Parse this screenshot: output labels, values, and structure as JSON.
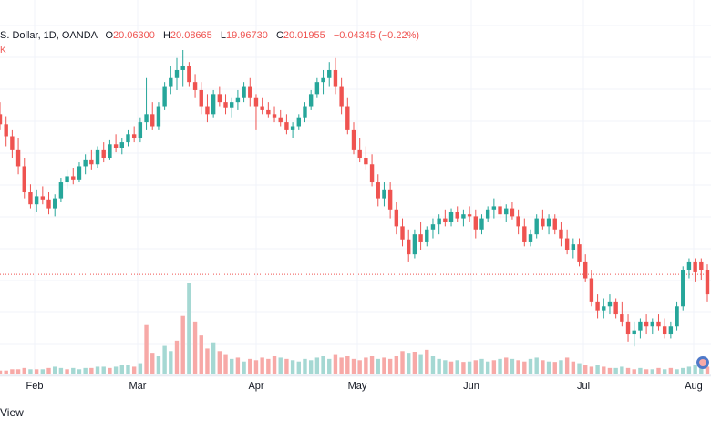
{
  "header": {
    "symbol_text": "S. Dollar, 1D, OANDA",
    "open_label": "O",
    "open": "20.06300",
    "high_label": "H",
    "high": "20.08665",
    "low_label": "L",
    "low": "19.96730",
    "close_label": "C",
    "close": "20.01955",
    "change": "−0.04345 (−0.22%)"
  },
  "footer": {
    "view_label": "View"
  },
  "side_mark": "K",
  "colors": {
    "up": "#26a69a",
    "down": "#ef5350",
    "up_volume": "#a5d8d3",
    "down_volume": "#f7a9a7",
    "grid": "#f0f3fa"
  },
  "chart_data": {
    "type": "candlestick",
    "x_ticks": [
      "Feb",
      "Mar",
      "Apr",
      "May",
      "Jun",
      "Jul",
      "Aug"
    ],
    "current_price_line": 20.0,
    "grid": true,
    "ylim": [
      19.55,
      21.12
    ],
    "candles": [
      {
        "o": 20.8,
        "h": 20.86,
        "l": 20.72,
        "c": 20.75
      },
      {
        "o": 20.75,
        "h": 20.79,
        "l": 20.64,
        "c": 20.69
      },
      {
        "o": 20.69,
        "h": 20.72,
        "l": 20.58,
        "c": 20.62
      },
      {
        "o": 20.62,
        "h": 20.68,
        "l": 20.5,
        "c": 20.54
      },
      {
        "o": 20.54,
        "h": 20.58,
        "l": 20.38,
        "c": 20.41
      },
      {
        "o": 20.41,
        "h": 20.45,
        "l": 20.33,
        "c": 20.35
      },
      {
        "o": 20.35,
        "h": 20.42,
        "l": 20.31,
        "c": 20.39
      },
      {
        "o": 20.39,
        "h": 20.44,
        "l": 20.35,
        "c": 20.37
      },
      {
        "o": 20.37,
        "h": 20.41,
        "l": 20.3,
        "c": 20.33
      },
      {
        "o": 20.33,
        "h": 20.4,
        "l": 20.29,
        "c": 20.38
      },
      {
        "o": 20.38,
        "h": 20.48,
        "l": 20.36,
        "c": 20.46
      },
      {
        "o": 20.46,
        "h": 20.52,
        "l": 20.43,
        "c": 20.49
      },
      {
        "o": 20.49,
        "h": 20.53,
        "l": 20.45,
        "c": 20.47
      },
      {
        "o": 20.47,
        "h": 20.56,
        "l": 20.46,
        "c": 20.54
      },
      {
        "o": 20.54,
        "h": 20.6,
        "l": 20.5,
        "c": 20.57
      },
      {
        "o": 20.57,
        "h": 20.62,
        "l": 20.52,
        "c": 20.55
      },
      {
        "o": 20.55,
        "h": 20.64,
        "l": 20.53,
        "c": 20.62
      },
      {
        "o": 20.62,
        "h": 20.66,
        "l": 20.56,
        "c": 20.58
      },
      {
        "o": 20.58,
        "h": 20.67,
        "l": 20.57,
        "c": 20.65
      },
      {
        "o": 20.65,
        "h": 20.7,
        "l": 20.61,
        "c": 20.63
      },
      {
        "o": 20.63,
        "h": 20.68,
        "l": 20.6,
        "c": 20.66
      },
      {
        "o": 20.66,
        "h": 20.72,
        "l": 20.64,
        "c": 20.7
      },
      {
        "o": 20.7,
        "h": 20.74,
        "l": 20.66,
        "c": 20.68
      },
      {
        "o": 20.68,
        "h": 20.78,
        "l": 20.66,
        "c": 20.76
      },
      {
        "o": 20.76,
        "h": 20.98,
        "l": 20.72,
        "c": 20.8
      },
      {
        "o": 20.8,
        "h": 20.86,
        "l": 20.72,
        "c": 20.74
      },
      {
        "o": 20.74,
        "h": 20.86,
        "l": 20.72,
        "c": 20.84
      },
      {
        "o": 20.84,
        "h": 20.96,
        "l": 20.82,
        "c": 20.94
      },
      {
        "o": 20.94,
        "h": 21.04,
        "l": 20.9,
        "c": 20.98
      },
      {
        "o": 20.98,
        "h": 21.08,
        "l": 20.92,
        "c": 21.02
      },
      {
        "o": 21.02,
        "h": 21.12,
        "l": 20.94,
        "c": 21.04
      },
      {
        "o": 21.04,
        "h": 21.06,
        "l": 20.94,
        "c": 20.96
      },
      {
        "o": 20.96,
        "h": 21.0,
        "l": 20.88,
        "c": 20.92
      },
      {
        "o": 20.92,
        "h": 20.96,
        "l": 20.8,
        "c": 20.84
      },
      {
        "o": 20.84,
        "h": 20.9,
        "l": 20.76,
        "c": 20.8
      },
      {
        "o": 20.8,
        "h": 20.92,
        "l": 20.78,
        "c": 20.9
      },
      {
        "o": 20.9,
        "h": 20.94,
        "l": 20.84,
        "c": 20.86
      },
      {
        "o": 20.86,
        "h": 20.9,
        "l": 20.8,
        "c": 20.83
      },
      {
        "o": 20.83,
        "h": 20.88,
        "l": 20.78,
        "c": 20.86
      },
      {
        "o": 20.86,
        "h": 20.92,
        "l": 20.82,
        "c": 20.88
      },
      {
        "o": 20.88,
        "h": 20.96,
        "l": 20.86,
        "c": 20.94
      },
      {
        "o": 20.94,
        "h": 20.98,
        "l": 20.84,
        "c": 20.88
      },
      {
        "o": 20.88,
        "h": 20.9,
        "l": 20.72,
        "c": 20.84
      },
      {
        "o": 20.84,
        "h": 20.88,
        "l": 20.8,
        "c": 20.82
      },
      {
        "o": 20.82,
        "h": 20.86,
        "l": 20.78,
        "c": 20.8
      },
      {
        "o": 20.8,
        "h": 20.84,
        "l": 20.76,
        "c": 20.78
      },
      {
        "o": 20.78,
        "h": 20.82,
        "l": 20.74,
        "c": 20.76
      },
      {
        "o": 20.76,
        "h": 20.8,
        "l": 20.7,
        "c": 20.72
      },
      {
        "o": 20.72,
        "h": 20.76,
        "l": 20.68,
        "c": 20.74
      },
      {
        "o": 20.74,
        "h": 20.8,
        "l": 20.72,
        "c": 20.78
      },
      {
        "o": 20.78,
        "h": 20.86,
        "l": 20.76,
        "c": 20.84
      },
      {
        "o": 20.84,
        "h": 20.92,
        "l": 20.82,
        "c": 20.9
      },
      {
        "o": 20.9,
        "h": 20.98,
        "l": 20.88,
        "c": 20.96
      },
      {
        "o": 20.96,
        "h": 21.02,
        "l": 20.9,
        "c": 20.98
      },
      {
        "o": 20.98,
        "h": 21.06,
        "l": 20.94,
        "c": 21.02
      },
      {
        "o": 21.02,
        "h": 21.08,
        "l": 20.9,
        "c": 20.94
      },
      {
        "o": 20.94,
        "h": 20.98,
        "l": 20.8,
        "c": 20.84
      },
      {
        "o": 20.84,
        "h": 20.88,
        "l": 20.7,
        "c": 20.72
      },
      {
        "o": 20.72,
        "h": 20.76,
        "l": 20.6,
        "c": 20.62
      },
      {
        "o": 20.62,
        "h": 20.68,
        "l": 20.56,
        "c": 20.58
      },
      {
        "o": 20.58,
        "h": 20.64,
        "l": 20.52,
        "c": 20.55
      },
      {
        "o": 20.55,
        "h": 20.6,
        "l": 20.44,
        "c": 20.46
      },
      {
        "o": 20.46,
        "h": 20.5,
        "l": 20.34,
        "c": 20.38
      },
      {
        "o": 20.38,
        "h": 20.46,
        "l": 20.34,
        "c": 20.42
      },
      {
        "o": 20.42,
        "h": 20.46,
        "l": 20.28,
        "c": 20.32
      },
      {
        "o": 20.32,
        "h": 20.36,
        "l": 20.2,
        "c": 20.24
      },
      {
        "o": 20.24,
        "h": 20.28,
        "l": 20.14,
        "c": 20.17
      },
      {
        "o": 20.17,
        "h": 20.22,
        "l": 20.06,
        "c": 20.1
      },
      {
        "o": 20.1,
        "h": 20.22,
        "l": 20.08,
        "c": 20.2
      },
      {
        "o": 20.2,
        "h": 20.26,
        "l": 20.12,
        "c": 20.16
      },
      {
        "o": 20.16,
        "h": 20.24,
        "l": 20.14,
        "c": 20.22
      },
      {
        "o": 20.22,
        "h": 20.28,
        "l": 20.18,
        "c": 20.25
      },
      {
        "o": 20.25,
        "h": 20.3,
        "l": 20.2,
        "c": 20.28
      },
      {
        "o": 20.28,
        "h": 20.32,
        "l": 20.24,
        "c": 20.26
      },
      {
        "o": 20.26,
        "h": 20.33,
        "l": 20.24,
        "c": 20.31
      },
      {
        "o": 20.31,
        "h": 20.34,
        "l": 20.26,
        "c": 20.28
      },
      {
        "o": 20.28,
        "h": 20.32,
        "l": 20.24,
        "c": 20.3
      },
      {
        "o": 20.3,
        "h": 20.34,
        "l": 20.26,
        "c": 20.29
      },
      {
        "o": 20.29,
        "h": 20.32,
        "l": 20.18,
        "c": 20.22
      },
      {
        "o": 20.22,
        "h": 20.3,
        "l": 20.2,
        "c": 20.28
      },
      {
        "o": 20.28,
        "h": 20.34,
        "l": 20.26,
        "c": 20.32
      },
      {
        "o": 20.32,
        "h": 20.38,
        "l": 20.28,
        "c": 20.34
      },
      {
        "o": 20.34,
        "h": 20.37,
        "l": 20.28,
        "c": 20.3
      },
      {
        "o": 20.3,
        "h": 20.35,
        "l": 20.26,
        "c": 20.33
      },
      {
        "o": 20.33,
        "h": 20.36,
        "l": 20.27,
        "c": 20.29
      },
      {
        "o": 20.29,
        "h": 20.32,
        "l": 20.2,
        "c": 20.24
      },
      {
        "o": 20.24,
        "h": 20.28,
        "l": 20.14,
        "c": 20.16
      },
      {
        "o": 20.16,
        "h": 20.22,
        "l": 20.14,
        "c": 20.2
      },
      {
        "o": 20.2,
        "h": 20.3,
        "l": 20.18,
        "c": 20.28
      },
      {
        "o": 20.28,
        "h": 20.32,
        "l": 20.22,
        "c": 20.24
      },
      {
        "o": 20.24,
        "h": 20.3,
        "l": 20.2,
        "c": 20.28
      },
      {
        "o": 20.28,
        "h": 20.3,
        "l": 20.2,
        "c": 20.22
      },
      {
        "o": 20.22,
        "h": 20.26,
        "l": 20.14,
        "c": 20.18
      },
      {
        "o": 20.18,
        "h": 20.22,
        "l": 20.1,
        "c": 20.12
      },
      {
        "o": 20.12,
        "h": 20.18,
        "l": 20.08,
        "c": 20.15
      },
      {
        "o": 20.15,
        "h": 20.18,
        "l": 20.04,
        "c": 20.06
      },
      {
        "o": 20.06,
        "h": 20.1,
        "l": 19.96,
        "c": 19.98
      },
      {
        "o": 19.98,
        "h": 20.02,
        "l": 19.84,
        "c": 19.86
      },
      {
        "o": 19.86,
        "h": 19.9,
        "l": 19.78,
        "c": 19.82
      },
      {
        "o": 19.82,
        "h": 19.88,
        "l": 19.78,
        "c": 19.84
      },
      {
        "o": 19.84,
        "h": 19.9,
        "l": 19.8,
        "c": 19.86
      },
      {
        "o": 19.86,
        "h": 19.88,
        "l": 19.78,
        "c": 19.8
      },
      {
        "o": 19.8,
        "h": 19.86,
        "l": 19.74,
        "c": 19.76
      },
      {
        "o": 19.76,
        "h": 19.8,
        "l": 19.66,
        "c": 19.7
      },
      {
        "o": 19.7,
        "h": 19.76,
        "l": 19.64,
        "c": 19.72
      },
      {
        "o": 19.72,
        "h": 19.78,
        "l": 19.68,
        "c": 19.76
      },
      {
        "o": 19.76,
        "h": 19.8,
        "l": 19.7,
        "c": 19.74
      },
      {
        "o": 19.74,
        "h": 19.78,
        "l": 19.7,
        "c": 19.76
      },
      {
        "o": 19.76,
        "h": 19.8,
        "l": 19.72,
        "c": 19.74
      },
      {
        "o": 19.74,
        "h": 19.78,
        "l": 19.68,
        "c": 19.7
      },
      {
        "o": 19.7,
        "h": 19.76,
        "l": 19.68,
        "c": 19.74
      },
      {
        "o": 19.74,
        "h": 19.86,
        "l": 19.72,
        "c": 19.84
      },
      {
        "o": 19.84,
        "h": 20.04,
        "l": 19.82,
        "c": 20.02
      },
      {
        "o": 20.02,
        "h": 20.08,
        "l": 19.98,
        "c": 20.06
      },
      {
        "o": 20.06,
        "h": 20.08,
        "l": 19.96,
        "c": 20.01
      },
      {
        "o": 20.06,
        "h": 20.08,
        "l": 19.97,
        "c": 20.02
      },
      {
        "o": 20.02,
        "h": 20.05,
        "l": 19.86,
        "c": 19.9
      }
    ],
    "volume": [
      {
        "v": 3,
        "d": "down"
      },
      {
        "v": 3,
        "d": "down"
      },
      {
        "v": 4,
        "d": "down"
      },
      {
        "v": 4,
        "d": "down"
      },
      {
        "v": 5,
        "d": "down"
      },
      {
        "v": 4,
        "d": "up"
      },
      {
        "v": 4,
        "d": "down"
      },
      {
        "v": 4,
        "d": "up"
      },
      {
        "v": 5,
        "d": "down"
      },
      {
        "v": 6,
        "d": "up"
      },
      {
        "v": 5,
        "d": "up"
      },
      {
        "v": 4,
        "d": "down"
      },
      {
        "v": 5,
        "d": "up"
      },
      {
        "v": 4,
        "d": "up"
      },
      {
        "v": 5,
        "d": "up"
      },
      {
        "v": 5,
        "d": "down"
      },
      {
        "v": 6,
        "d": "up"
      },
      {
        "v": 6,
        "d": "up"
      },
      {
        "v": 5,
        "d": "down"
      },
      {
        "v": 6,
        "d": "up"
      },
      {
        "v": 7,
        "d": "up"
      },
      {
        "v": 7,
        "d": "up"
      },
      {
        "v": 6,
        "d": "down"
      },
      {
        "v": 8,
        "d": "up"
      },
      {
        "v": 38,
        "d": "down"
      },
      {
        "v": 16,
        "d": "down"
      },
      {
        "v": 14,
        "d": "up"
      },
      {
        "v": 22,
        "d": "up"
      },
      {
        "v": 18,
        "d": "up"
      },
      {
        "v": 26,
        "d": "down"
      },
      {
        "v": 45,
        "d": "down"
      },
      {
        "v": 70,
        "d": "up"
      },
      {
        "v": 40,
        "d": "down"
      },
      {
        "v": 30,
        "d": "down"
      },
      {
        "v": 20,
        "d": "down"
      },
      {
        "v": 24,
        "d": "up"
      },
      {
        "v": 18,
        "d": "down"
      },
      {
        "v": 15,
        "d": "down"
      },
      {
        "v": 12,
        "d": "up"
      },
      {
        "v": 13,
        "d": "down"
      },
      {
        "v": 10,
        "d": "up"
      },
      {
        "v": 12,
        "d": "down"
      },
      {
        "v": 11,
        "d": "down"
      },
      {
        "v": 13,
        "d": "down"
      },
      {
        "v": 12,
        "d": "down"
      },
      {
        "v": 14,
        "d": "down"
      },
      {
        "v": 13,
        "d": "up"
      },
      {
        "v": 12,
        "d": "down"
      },
      {
        "v": 11,
        "d": "up"
      },
      {
        "v": 10,
        "d": "up"
      },
      {
        "v": 12,
        "d": "up"
      },
      {
        "v": 11,
        "d": "up"
      },
      {
        "v": 13,
        "d": "up"
      },
      {
        "v": 14,
        "d": "up"
      },
      {
        "v": 12,
        "d": "up"
      },
      {
        "v": 15,
        "d": "down"
      },
      {
        "v": 13,
        "d": "down"
      },
      {
        "v": 14,
        "d": "down"
      },
      {
        "v": 12,
        "d": "down"
      },
      {
        "v": 11,
        "d": "down"
      },
      {
        "v": 13,
        "d": "down"
      },
      {
        "v": 14,
        "d": "down"
      },
      {
        "v": 12,
        "d": "up"
      },
      {
        "v": 13,
        "d": "down"
      },
      {
        "v": 12,
        "d": "down"
      },
      {
        "v": 14,
        "d": "down"
      },
      {
        "v": 18,
        "d": "down"
      },
      {
        "v": 16,
        "d": "up"
      },
      {
        "v": 17,
        "d": "down"
      },
      {
        "v": 15,
        "d": "up"
      },
      {
        "v": 19,
        "d": "down"
      },
      {
        "v": 14,
        "d": "up"
      },
      {
        "v": 12,
        "d": "up"
      },
      {
        "v": 11,
        "d": "up"
      },
      {
        "v": 10,
        "d": "down"
      },
      {
        "v": 11,
        "d": "up"
      },
      {
        "v": 9,
        "d": "down"
      },
      {
        "v": 10,
        "d": "up"
      },
      {
        "v": 11,
        "d": "down"
      },
      {
        "v": 12,
        "d": "up"
      },
      {
        "v": 10,
        "d": "up"
      },
      {
        "v": 11,
        "d": "down"
      },
      {
        "v": 12,
        "d": "up"
      },
      {
        "v": 13,
        "d": "down"
      },
      {
        "v": 12,
        "d": "up"
      },
      {
        "v": 11,
        "d": "down"
      },
      {
        "v": 10,
        "d": "down"
      },
      {
        "v": 12,
        "d": "up"
      },
      {
        "v": 13,
        "d": "up"
      },
      {
        "v": 11,
        "d": "down"
      },
      {
        "v": 10,
        "d": "up"
      },
      {
        "v": 9,
        "d": "down"
      },
      {
        "v": 11,
        "d": "up"
      },
      {
        "v": 13,
        "d": "down"
      },
      {
        "v": 10,
        "d": "down"
      },
      {
        "v": 8,
        "d": "up"
      },
      {
        "v": 7,
        "d": "down"
      },
      {
        "v": 6,
        "d": "down"
      },
      {
        "v": 7,
        "d": "up"
      },
      {
        "v": 6,
        "d": "down"
      },
      {
        "v": 5,
        "d": "down"
      },
      {
        "v": 5,
        "d": "up"
      },
      {
        "v": 6,
        "d": "up"
      },
      {
        "v": 5,
        "d": "down"
      },
      {
        "v": 4,
        "d": "down"
      },
      {
        "v": 5,
        "d": "up"
      },
      {
        "v": 4,
        "d": "down"
      },
      {
        "v": 4,
        "d": "up"
      },
      {
        "v": 5,
        "d": "down"
      },
      {
        "v": 4,
        "d": "up"
      },
      {
        "v": 5,
        "d": "down"
      },
      {
        "v": 4,
        "d": "up"
      },
      {
        "v": 5,
        "d": "up"
      },
      {
        "v": 6,
        "d": "up"
      },
      {
        "v": 7,
        "d": "up"
      },
      {
        "v": 8,
        "d": "up"
      },
      {
        "v": 6,
        "d": "down"
      }
    ]
  }
}
